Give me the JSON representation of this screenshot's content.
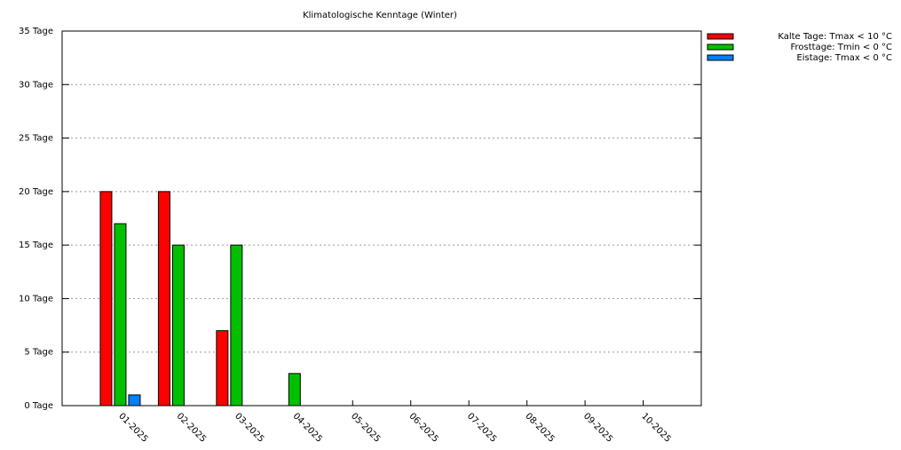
{
  "chart_data": {
    "type": "bar",
    "title": "Klimatologische Kenntage (Winter)",
    "categories": [
      "01-2025",
      "02-2025",
      "03-2025",
      "04-2025",
      "05-2025",
      "06-2025",
      "07-2025",
      "08-2025",
      "09-2025",
      "10-2025"
    ],
    "series": [
      {
        "name": "Kalte Tage: Tmax < 10 °C",
        "color": "#ff0000",
        "values": [
          20,
          20,
          7,
          0,
          null,
          null,
          null,
          null,
          null,
          null
        ]
      },
      {
        "name": "Frosttage: Tmin < 0 °C",
        "color": "#00c000",
        "values": [
          17,
          15,
          15,
          3,
          null,
          null,
          null,
          null,
          null,
          null
        ]
      },
      {
        "name": "Eistage: Tmax < 0 °C",
        "color": "#0080ff",
        "values": [
          1,
          0,
          0,
          0,
          null,
          null,
          null,
          null,
          null,
          null
        ]
      }
    ],
    "ylim": [
      0,
      35
    ],
    "yticks": [
      {
        "value": 0,
        "label": "0 Tage"
      },
      {
        "value": 5,
        "label": "5 Tage"
      },
      {
        "value": 10,
        "label": "10 Tage"
      },
      {
        "value": 15,
        "label": "15 Tage"
      },
      {
        "value": 20,
        "label": "20 Tage"
      },
      {
        "value": 25,
        "label": "25 Tage"
      },
      {
        "value": 30,
        "label": "30 Tage"
      },
      {
        "value": 35,
        "label": "35 Tage"
      }
    ],
    "grid": true,
    "legend": "top-right"
  }
}
